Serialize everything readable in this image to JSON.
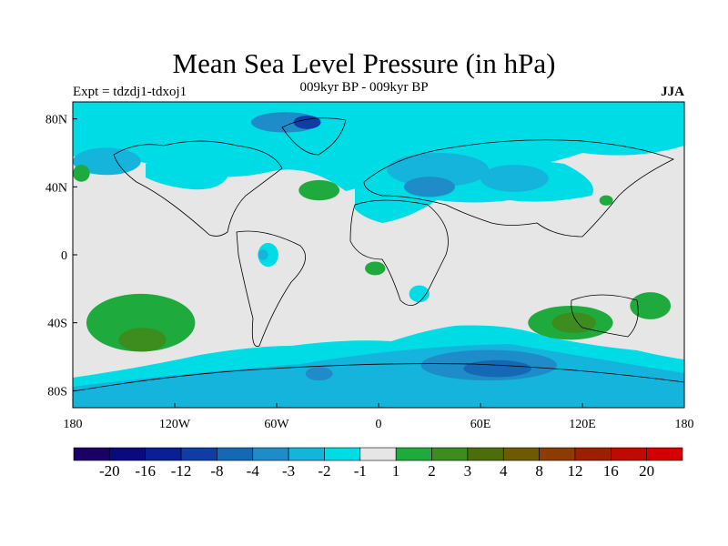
{
  "title": "Mean Sea Level Pressure (in hPa)",
  "subtitle": "009kyr BP - 009kyr BP",
  "experiment": "Expt = tdzdj1-tdxoj1",
  "season": "JJA",
  "map": {
    "lon_range": [
      -180,
      180
    ],
    "lat_range": [
      -90,
      90
    ],
    "x_ticks": [
      {
        "lon": -180,
        "label": "180"
      },
      {
        "lon": -120,
        "label": "120W"
      },
      {
        "lon": -60,
        "label": "60W"
      },
      {
        "lon": 0,
        "label": "0"
      },
      {
        "lon": 60,
        "label": "60E"
      },
      {
        "lon": 120,
        "label": "120E"
      },
      {
        "lon": 180,
        "label": "180"
      }
    ],
    "y_ticks": [
      {
        "lat": 80,
        "label": "80N"
      },
      {
        "lat": 40,
        "label": "40N"
      },
      {
        "lat": 0,
        "label": "0"
      },
      {
        "lat": -40,
        "label": "40S"
      },
      {
        "lat": -80,
        "label": "80S"
      }
    ]
  },
  "colorbar": {
    "colors": [
      "#1a0066",
      "#0a0a80",
      "#0a1e96",
      "#0f3ca5",
      "#1469b4",
      "#1e8cc8",
      "#14b4dc",
      "#00dce6",
      "#e6e6e6",
      "#1eaa3c",
      "#3c8c1e",
      "#4b6e0a",
      "#6e5a00",
      "#8c3c00",
      "#a01e00",
      "#be0a00",
      "#d20000"
    ],
    "labels": [
      "-20",
      "-16",
      "-12",
      "-8",
      "-4",
      "-3",
      "-2",
      "-1",
      "1",
      "2",
      "3",
      "4",
      "8",
      "12",
      "16",
      "20"
    ]
  },
  "regions": [
    {
      "level": "-3",
      "color": "#1e8cc8",
      "lon": -55,
      "lat": 78,
      "rx": 20,
      "ry": 6
    },
    {
      "level": "-8",
      "color": "#0f3ca5",
      "lon": -42,
      "lat": 78,
      "rx": 8,
      "ry": 4
    },
    {
      "level": "-2",
      "color": "#14b4dc",
      "lon": -160,
      "lat": 55,
      "rx": 20,
      "ry": 8
    },
    {
      "level": "-2",
      "color": "#14b4dc",
      "lon": 35,
      "lat": 50,
      "rx": 30,
      "ry": 10
    },
    {
      "level": "-3",
      "color": "#1e8cc8",
      "lon": 30,
      "lat": 40,
      "rx": 15,
      "ry": 6
    },
    {
      "level": "-2",
      "color": "#14b4dc",
      "lon": 80,
      "lat": 45,
      "rx": 20,
      "ry": 8
    },
    {
      "level": "-1",
      "color": "#00dce6",
      "lon": -65,
      "lat": 0,
      "rx": 6,
      "ry": 7
    },
    {
      "level": "-2",
      "color": "#14b4dc",
      "lon": -68,
      "lat": 0,
      "rx": 3,
      "ry": 3
    },
    {
      "level": "-1",
      "color": "#00dce6",
      "lon": 24,
      "lat": -23,
      "rx": 6,
      "ry": 5
    },
    {
      "level": "-3",
      "color": "#1e8cc8",
      "lon": 65,
      "lat": -65,
      "rx": 40,
      "ry": 9
    },
    {
      "level": "-4",
      "color": "#1469b4",
      "lon": 70,
      "lat": -67,
      "rx": 20,
      "ry": 5
    },
    {
      "level": "-3",
      "color": "#1e8cc8",
      "lon": -35,
      "lat": -70,
      "rx": 8,
      "ry": 4
    },
    {
      "level": "2",
      "color": "#1eaa3c",
      "lon": -35,
      "lat": 38,
      "rx": 12,
      "ry": 6
    },
    {
      "level": "2",
      "color": "#1eaa3c",
      "lon": -175,
      "lat": 48,
      "rx": 5,
      "ry": 5
    },
    {
      "level": "2",
      "color": "#1eaa3c",
      "lon": 113,
      "lat": -40,
      "rx": 25,
      "ry": 10
    },
    {
      "level": "3",
      "color": "#3c8c1e",
      "lon": 115,
      "lat": -40,
      "rx": 13,
      "ry": 6
    },
    {
      "level": "2",
      "color": "#1eaa3c",
      "lon": 160,
      "lat": -30,
      "rx": 12,
      "ry": 8
    },
    {
      "level": "2",
      "color": "#1eaa3c",
      "lon": -140,
      "lat": -40,
      "rx": 32,
      "ry": 17
    },
    {
      "level": "3",
      "color": "#3c8c1e",
      "lon": -139,
      "lat": -50,
      "rx": 14,
      "ry": 7
    },
    {
      "level": "2",
      "color": "#1eaa3c",
      "lon": -2,
      "lat": -8,
      "rx": 6,
      "ry": 4
    },
    {
      "level": "2",
      "color": "#1eaa3c",
      "lon": 134,
      "lat": 32,
      "rx": 4,
      "ry": 3
    }
  ]
}
